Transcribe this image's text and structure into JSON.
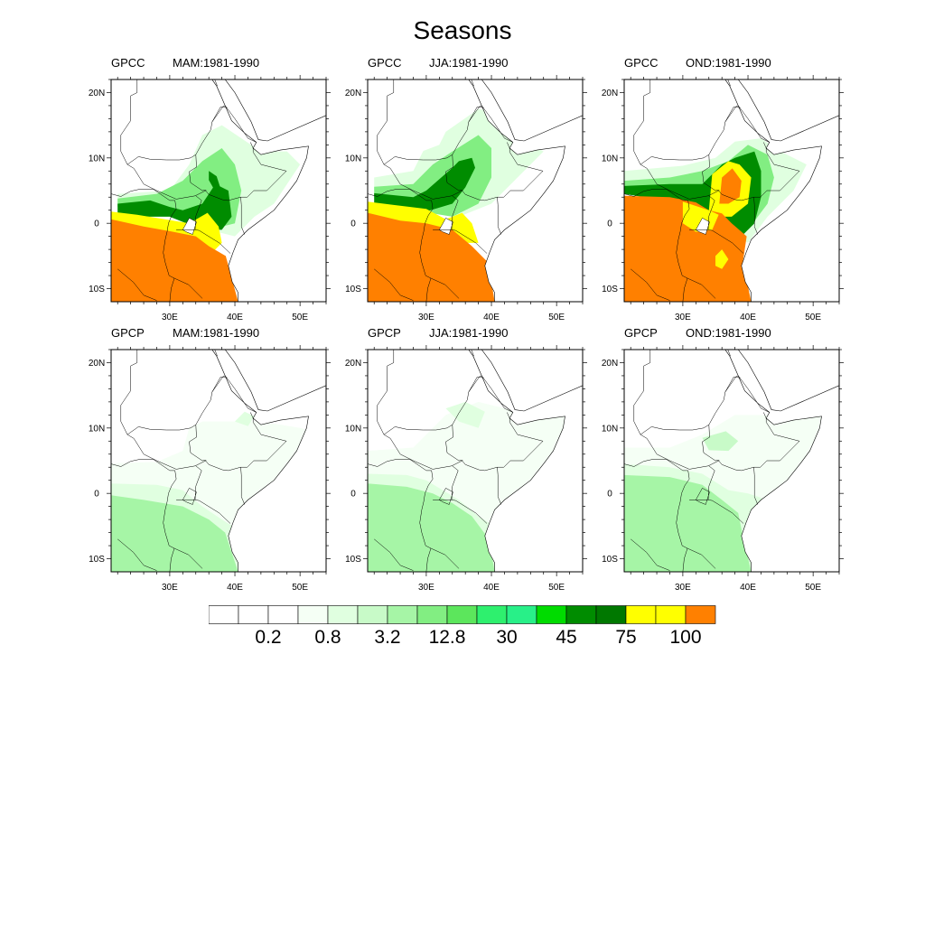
{
  "title": "Seasons",
  "colors": {
    "levels": [
      "#ffffff",
      "#ffffff",
      "#ffffff",
      "#f5fff5",
      "#e0ffe0",
      "#c8fac8",
      "#a6f5a6",
      "#82ee82",
      "#5ce65c",
      "#2ef06e",
      "#28f088",
      "#00dc00",
      "#008c00",
      "#007800",
      "#ffff00",
      "#ffff00",
      "#ff8000"
    ]
  },
  "map_axes": {
    "lon_ticks": [
      "30E",
      "40E",
      "50E"
    ],
    "lat_ticks": [
      "20N",
      "10N",
      "0",
      "10S"
    ],
    "lon_range": [
      21,
      54
    ],
    "lat_range": [
      -12,
      22
    ]
  },
  "panels": [
    {
      "dataset": "GPCC",
      "season": "MAM:1981-1990"
    },
    {
      "dataset": "GPCC",
      "season": "JJA:1981-1990"
    },
    {
      "dataset": "GPCC",
      "season": "OND:1981-1990"
    },
    {
      "dataset": "GPCP",
      "season": "MAM:1981-1990"
    },
    {
      "dataset": "GPCP",
      "season": "JJA:1981-1990"
    },
    {
      "dataset": "GPCP",
      "season": "OND:1981-1990"
    }
  ],
  "colorbar": {
    "labels": [
      "0.2",
      "0.8",
      "3.2",
      "12.8",
      "30",
      "45",
      "75",
      "100"
    ]
  }
}
